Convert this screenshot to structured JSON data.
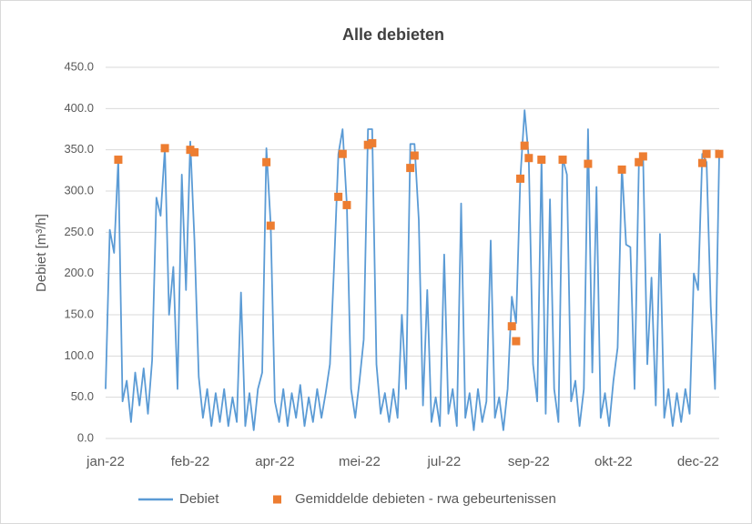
{
  "chart_data": {
    "type": "line",
    "title": "Alle debieten",
    "y_label": "Debiet [m³/h]",
    "grid": true,
    "legend": "bottom",
    "ylim": [
      0,
      450
    ],
    "yticks": [
      {
        "value": 0,
        "label": "0.0"
      },
      {
        "value": 50,
        "label": "50.0"
      },
      {
        "value": 100,
        "label": "100.0"
      },
      {
        "value": 150,
        "label": "150.0"
      },
      {
        "value": 200,
        "label": "200.0"
      },
      {
        "value": 250,
        "label": "250.0"
      },
      {
        "value": 300,
        "label": "300.0"
      },
      {
        "value": 350,
        "label": "350.0"
      },
      {
        "value": 400,
        "label": "400.0"
      },
      {
        "value": 450,
        "label": "450.0"
      }
    ],
    "categories": [
      "jan-22",
      null,
      null,
      null,
      null,
      null,
      null,
      null,
      null,
      null,
      null,
      null,
      null,
      null,
      null,
      null,
      null,
      null,
      null,
      null,
      "feb-22",
      null,
      null,
      null,
      null,
      null,
      null,
      null,
      null,
      null,
      null,
      null,
      null,
      null,
      null,
      null,
      null,
      null,
      null,
      null,
      "apr-22",
      null,
      null,
      null,
      null,
      null,
      null,
      null,
      null,
      null,
      null,
      null,
      null,
      null,
      null,
      null,
      null,
      null,
      null,
      null,
      "mei-22",
      null,
      null,
      null,
      null,
      null,
      null,
      null,
      null,
      null,
      null,
      null,
      null,
      null,
      null,
      null,
      null,
      null,
      null,
      null,
      "jul-22",
      null,
      null,
      null,
      null,
      null,
      null,
      null,
      null,
      null,
      null,
      null,
      null,
      null,
      null,
      null,
      null,
      null,
      null,
      null,
      "sep-22",
      null,
      null,
      null,
      null,
      null,
      null,
      null,
      null,
      null,
      null,
      null,
      null,
      null,
      null,
      null,
      null,
      null,
      null,
      null,
      "okt-22",
      null,
      null,
      null,
      null,
      null,
      null,
      null,
      null,
      null,
      null,
      null,
      null,
      null,
      null,
      null,
      null,
      null,
      null,
      null,
      "dec-22",
      null,
      null,
      null,
      null,
      null
    ],
    "series": [
      {
        "name": "Debiet",
        "type": "line",
        "color": "#5b9bd5",
        "values": [
          60,
          253,
          225,
          338,
          45,
          70,
          20,
          80,
          40,
          85,
          30,
          95,
          292,
          270,
          352,
          150,
          208,
          60,
          320,
          180,
          360,
          240,
          75,
          25,
          60,
          15,
          55,
          20,
          60,
          15,
          50,
          20,
          177,
          15,
          55,
          10,
          60,
          80,
          352,
          260,
          45,
          20,
          60,
          15,
          55,
          25,
          65,
          15,
          50,
          20,
          60,
          25,
          55,
          90,
          210,
          345,
          375,
          283,
          60,
          25,
          70,
          120,
          375,
          375,
          90,
          30,
          55,
          20,
          60,
          25,
          150,
          60,
          357,
          357,
          265,
          40,
          180,
          20,
          50,
          15,
          223,
          30,
          60,
          15,
          285,
          25,
          55,
          10,
          60,
          20,
          45,
          240,
          25,
          50,
          10,
          60,
          172,
          140,
          315,
          398,
          340,
          90,
          45,
          340,
          30,
          290,
          60,
          20,
          340,
          320,
          45,
          70,
          15,
          60,
          375,
          80,
          305,
          25,
          55,
          15,
          70,
          110,
          330,
          235,
          232,
          60,
          330,
          345,
          90,
          195,
          40,
          248,
          25,
          60,
          15,
          55,
          20,
          60,
          30,
          200,
          180,
          345,
          335,
          160,
          60,
          345
        ]
      },
      {
        "name": "Gemiddelde debieten - rwa gebeurtenissen",
        "type": "scatter",
        "color": "#ed7d31",
        "values": [
          null,
          null,
          null,
          338,
          null,
          null,
          null,
          null,
          null,
          null,
          null,
          null,
          null,
          null,
          352,
          null,
          null,
          null,
          null,
          null,
          350,
          347,
          null,
          null,
          null,
          null,
          null,
          null,
          null,
          null,
          null,
          null,
          null,
          null,
          null,
          null,
          null,
          null,
          335,
          258,
          null,
          null,
          null,
          null,
          null,
          null,
          null,
          null,
          null,
          null,
          null,
          null,
          null,
          null,
          null,
          293,
          345,
          283,
          null,
          null,
          null,
          null,
          356,
          358,
          null,
          null,
          null,
          null,
          null,
          null,
          null,
          null,
          328,
          343,
          null,
          null,
          null,
          null,
          null,
          null,
          null,
          null,
          null,
          null,
          null,
          null,
          null,
          null,
          null,
          null,
          null,
          null,
          null,
          null,
          null,
          null,
          136,
          118,
          315,
          355,
          340,
          null,
          null,
          338,
          null,
          null,
          null,
          null,
          338,
          null,
          null,
          null,
          null,
          null,
          333,
          null,
          null,
          null,
          null,
          null,
          null,
          null,
          326,
          null,
          null,
          null,
          335,
          342,
          null,
          null,
          null,
          null,
          null,
          null,
          null,
          null,
          null,
          null,
          null,
          null,
          null,
          334,
          345,
          null,
          null,
          345
        ]
      }
    ]
  }
}
